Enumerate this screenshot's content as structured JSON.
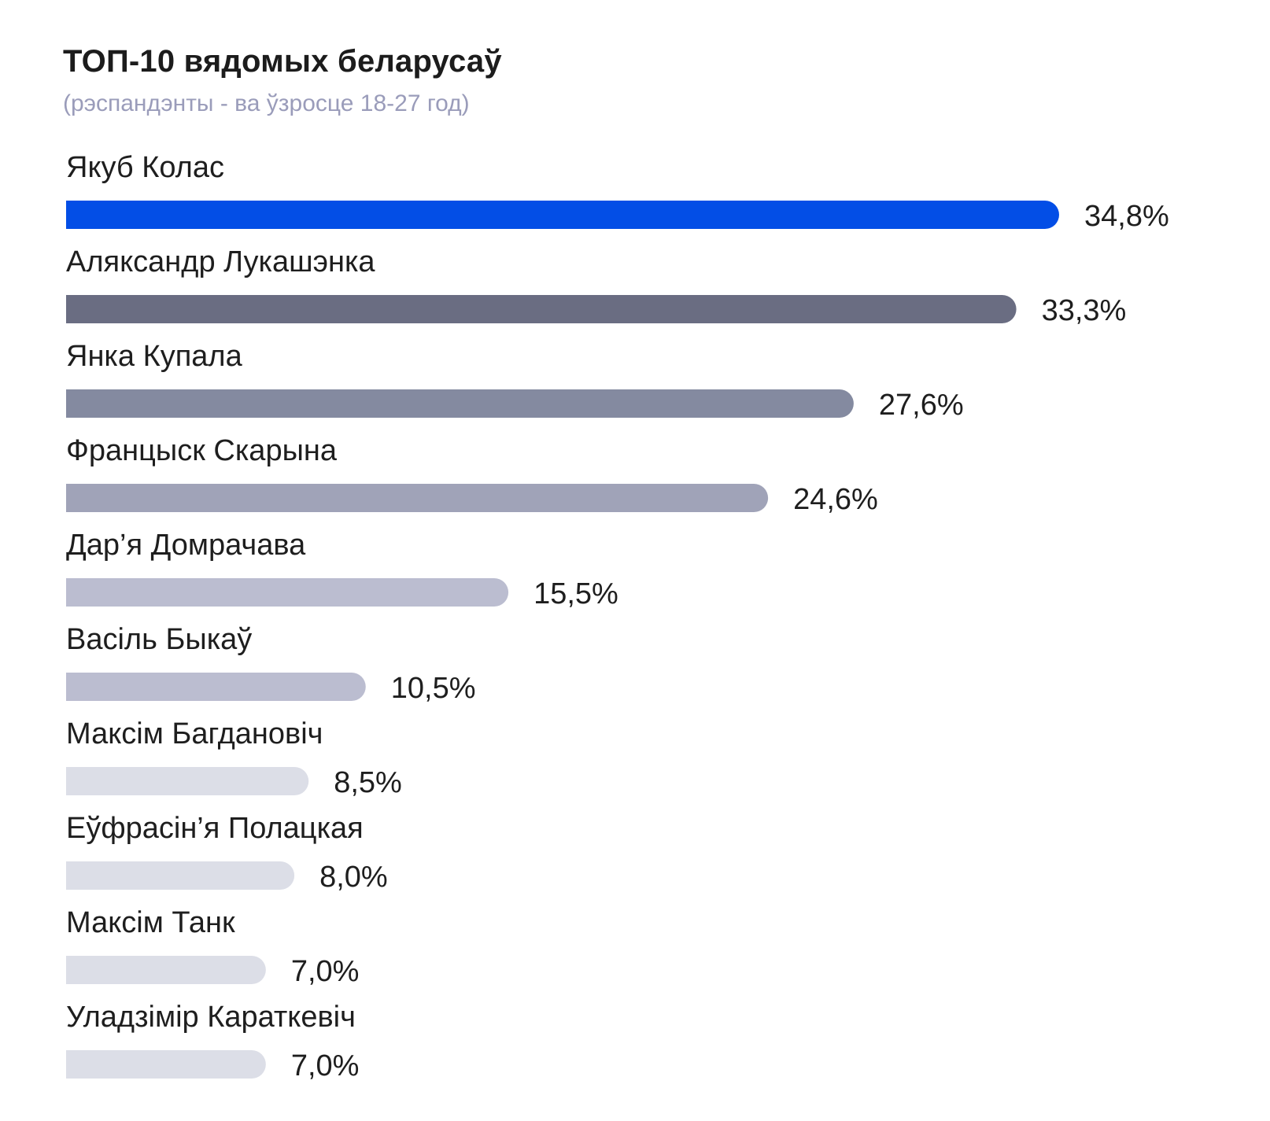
{
  "chart_data": {
    "type": "bar",
    "orientation": "horizontal",
    "title": "ТОП-10 вядомых беларусаў",
    "subtitle": "(рэспандэнты - ва ўзросце 18-27 год)",
    "unit": "%",
    "xlim": [
      0,
      34.8
    ],
    "grid": false,
    "legend": "none",
    "categories": [
      "Якуб Колас",
      "Аляксандр Лукашэнка",
      "Янка Купала",
      "Францыск Скарына",
      "Дар’я Домрачава",
      "Васіль Быкаў",
      "Максім Багдановіч",
      "Еўфрасін’я Полацкая",
      "Максім Танк",
      "Уладзімір Караткевіч"
    ],
    "values": [
      34.8,
      33.3,
      27.6,
      24.6,
      15.5,
      10.5,
      8.5,
      8.0,
      7.0,
      7.0
    ],
    "value_labels": [
      "34,8%",
      "33,3%",
      "27,6%",
      "24,6%",
      "15,5%",
      "10,5%",
      "8,5%",
      "8,0%",
      "7,0%",
      "7,0%"
    ],
    "colors": [
      "#034ee6",
      "#6a6d82",
      "#848aa0",
      "#a0a3b8",
      "#bbbdd0",
      "#bbbdd0",
      "#dcdee7",
      "#dcdee7",
      "#dcdee7",
      "#dcdee7"
    ]
  }
}
